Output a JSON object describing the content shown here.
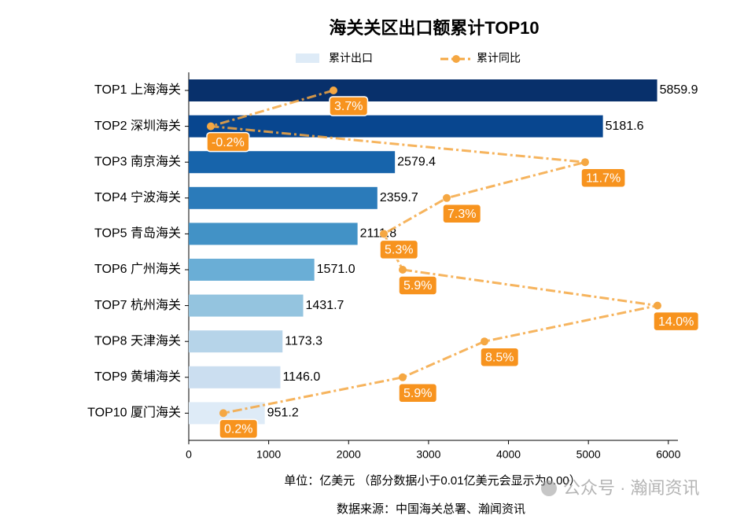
{
  "chart_data": {
    "type": "bar",
    "orientation": "horizontal",
    "title": "海关关区出口额累计TOP10",
    "categories": [
      "TOP1 上海海关",
      "TOP2 深圳海关",
      "TOP3 南京海关",
      "TOP4 宁波海关",
      "TOP5 青岛海关",
      "TOP6 广州海关",
      "TOP7 杭州海关",
      "TOP8 天津海关",
      "TOP9 黄埔海关",
      "TOP10 厦门海关"
    ],
    "series": [
      {
        "name": "累计出口",
        "type": "bar",
        "legend_color": "#deebf7",
        "colors": [
          "#08306b",
          "#08468f",
          "#1764ab",
          "#2b7bba",
          "#4292c6",
          "#6aaed6",
          "#94c4df",
          "#b6d4e9",
          "#cbdef0",
          "#deebf7"
        ],
        "values": [
          5859.9,
          5181.6,
          2579.4,
          2359.7,
          2111.8,
          1571.0,
          1431.7,
          1173.3,
          1146.0,
          951.2
        ],
        "value_labels": [
          "5859.9",
          "5181.6",
          "2579.4",
          "2359.7",
          "2111.8",
          "1571.0",
          "1431.7",
          "1173.3",
          "1146.0",
          "951.2"
        ]
      },
      {
        "name": "累计同比",
        "type": "line",
        "axis": "x2",
        "color": "#f5a742",
        "label_color": "#f7931e",
        "values": [
          3.7,
          -0.2,
          11.7,
          7.3,
          5.3,
          5.9,
          14.0,
          8.5,
          5.9,
          0.2
        ],
        "value_labels": [
          "3.7%",
          "-0.2%",
          "11.7%",
          "7.3%",
          "5.3%",
          "5.9%",
          "14.0%",
          "8.5%",
          "5.9%",
          "0.2%"
        ]
      }
    ],
    "xlim": [
      0,
      6120
    ],
    "xticks": [
      0,
      1000,
      2000,
      3000,
      4000,
      5000,
      6000
    ],
    "x2lim": [
      -0.9,
      14.65
    ],
    "x_label": "单位：亿美元  （部分数据小于0.01亿美元会显示为0.00）",
    "source": "数据来源：中国海关总署、瀚闻资讯",
    "watermark": "公众号 · 瀚闻资讯",
    "legend": "top"
  }
}
